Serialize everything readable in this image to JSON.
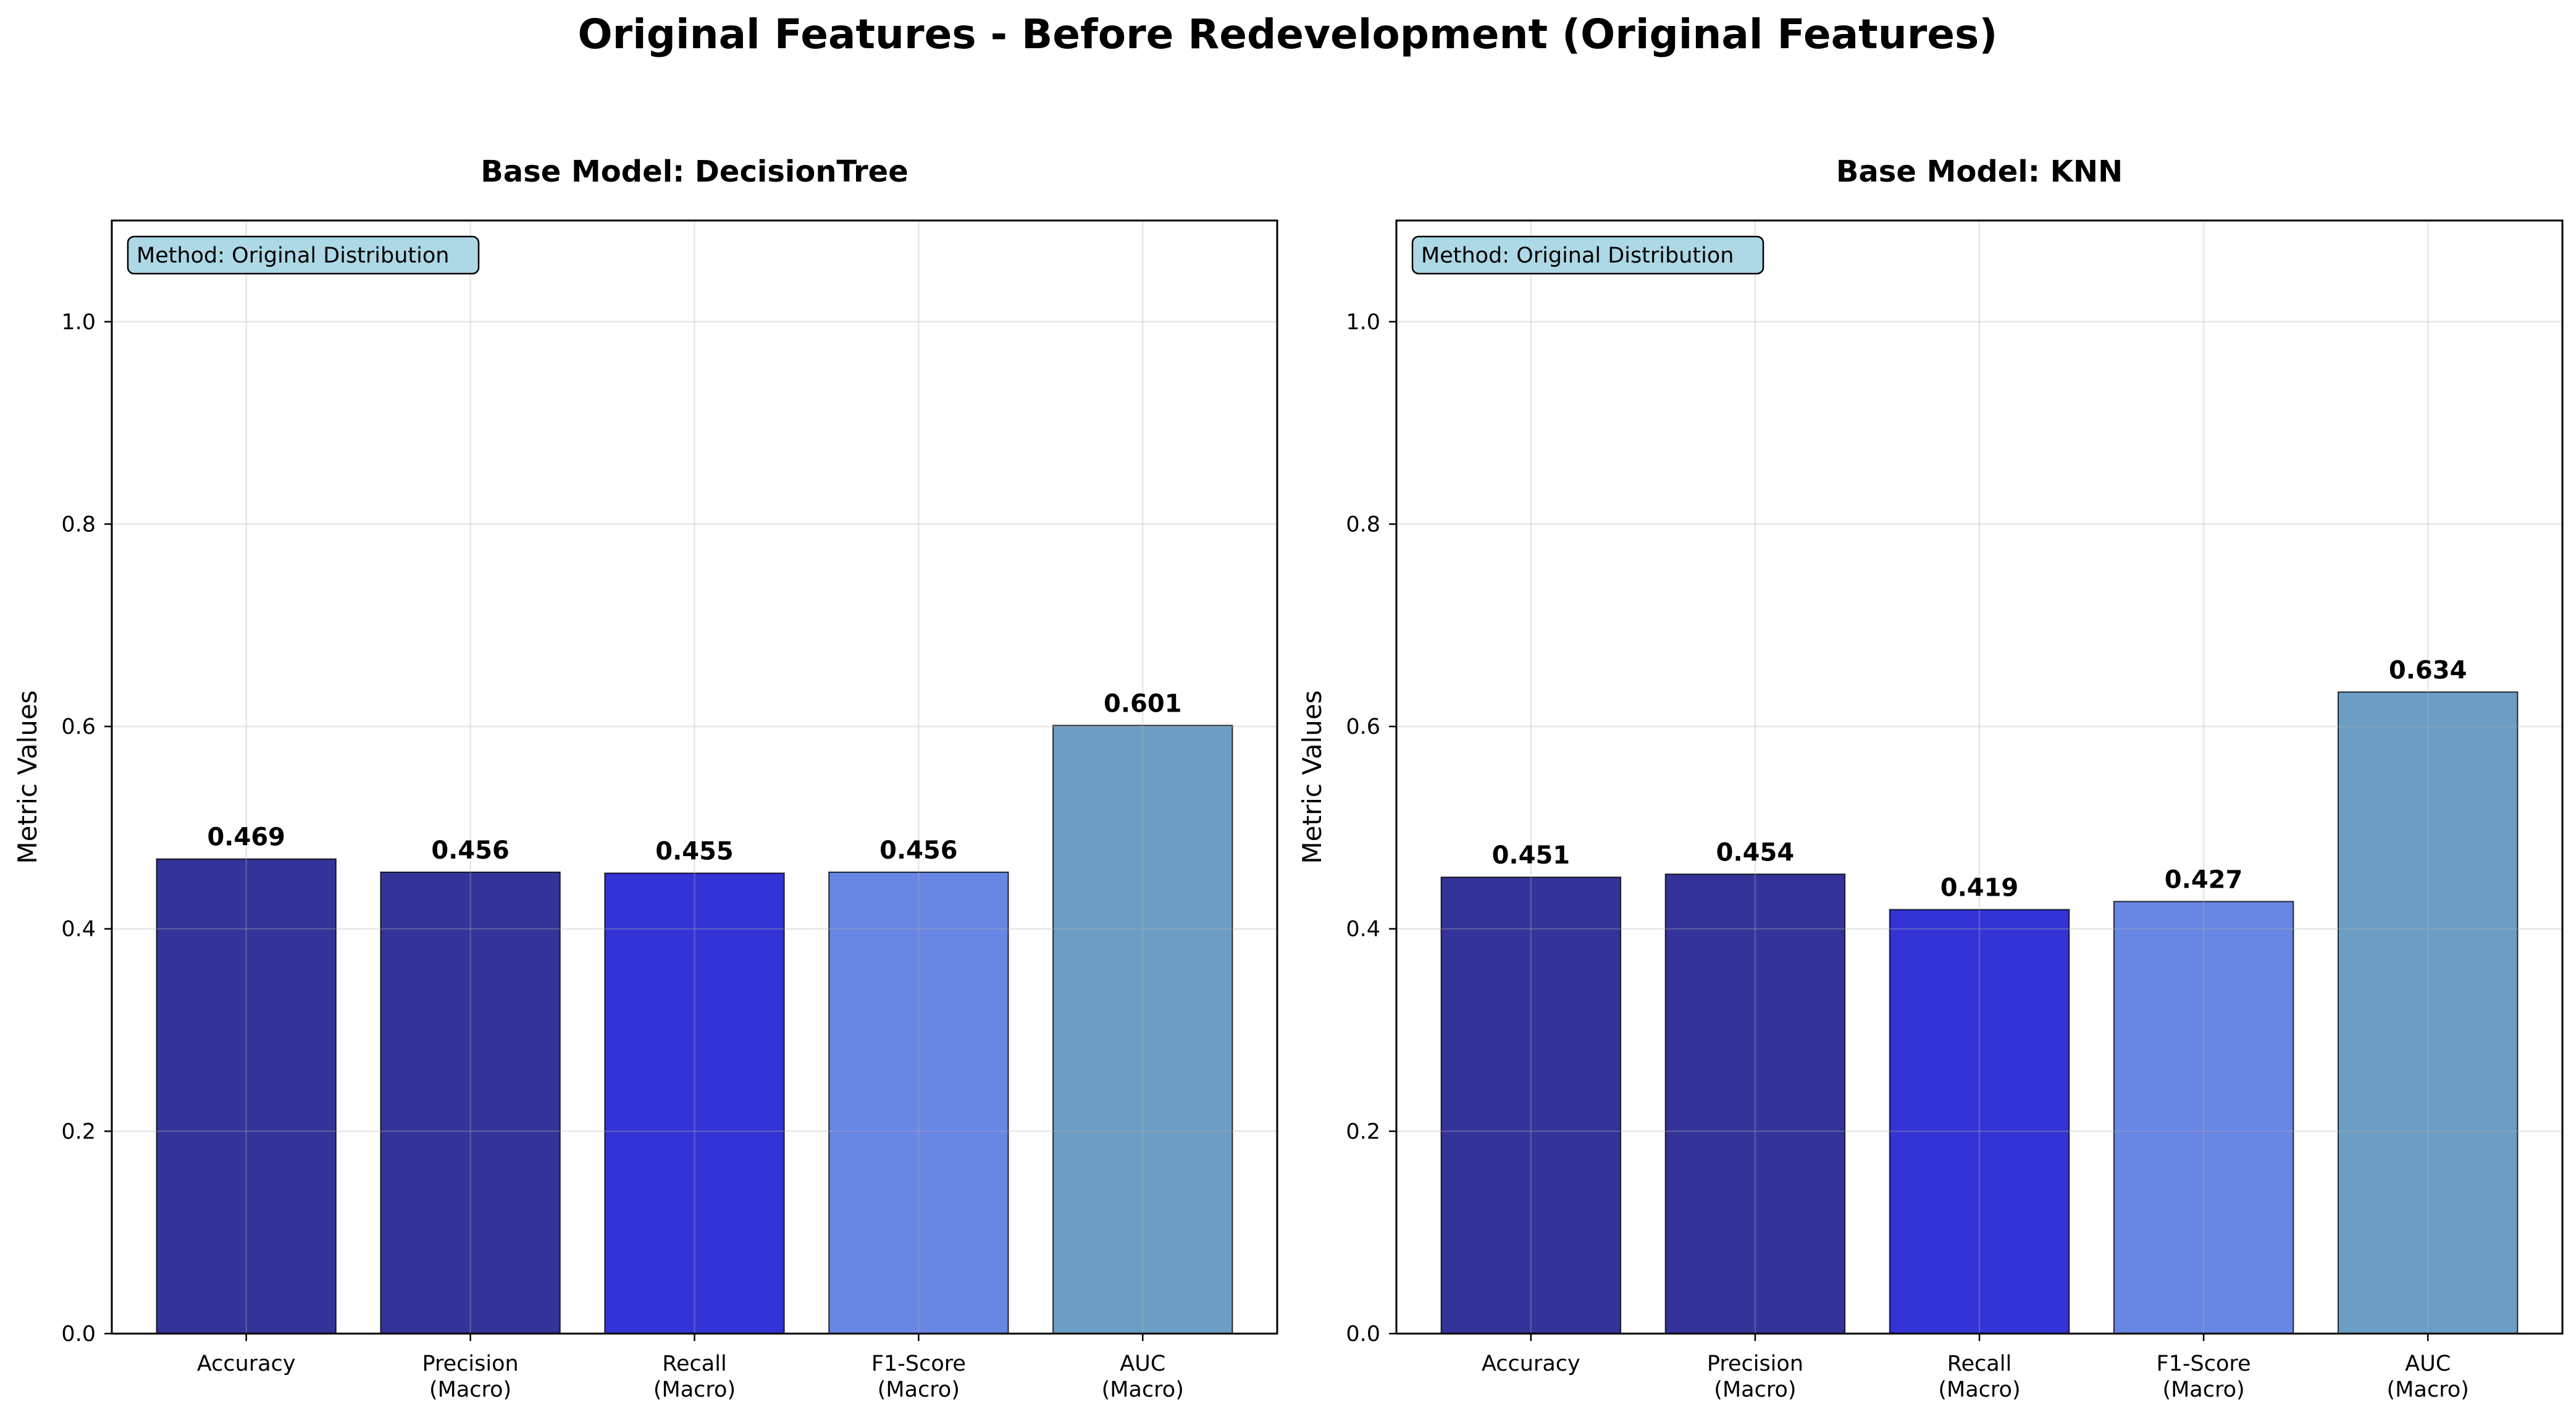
{
  "figure": {
    "title": "Original Features - Before Redevelopment (Original Features)"
  },
  "chart_data": [
    {
      "type": "bar",
      "title": "Base Model: DecisionTree",
      "ylabel": "Metric Values",
      "xlabel": "",
      "ylim": [
        0,
        1.1
      ],
      "yticks": [
        0.0,
        0.2,
        0.4,
        0.6,
        0.8,
        1.0
      ],
      "yticklabels": [
        "0.0",
        "0.2",
        "0.4",
        "0.6",
        "0.8",
        "1.0"
      ],
      "grid": true,
      "annotation": "Method: Original Distribution",
      "categories": [
        [
          "Accuracy"
        ],
        [
          "Precision",
          "(Macro)"
        ],
        [
          "Recall",
          "(Macro)"
        ],
        [
          "F1-Score",
          "(Macro)"
        ],
        [
          "AUC",
          "(Macro)"
        ]
      ],
      "values": [
        0.469,
        0.456,
        0.455,
        0.456,
        0.601
      ],
      "value_labels": [
        "0.469",
        "0.456",
        "0.455",
        "0.456",
        "0.601"
      ],
      "colors": [
        "#333399",
        "#333399",
        "#3333d6",
        "#6886e4",
        "#6c9ec5"
      ]
    },
    {
      "type": "bar",
      "title": "Base Model: KNN",
      "ylabel": "Metric Values",
      "xlabel": "",
      "ylim": [
        0,
        1.1
      ],
      "yticks": [
        0.0,
        0.2,
        0.4,
        0.6,
        0.8,
        1.0
      ],
      "yticklabels": [
        "0.0",
        "0.2",
        "0.4",
        "0.6",
        "0.8",
        "1.0"
      ],
      "grid": true,
      "annotation": "Method: Original Distribution",
      "categories": [
        [
          "Accuracy"
        ],
        [
          "Precision",
          "(Macro)"
        ],
        [
          "Recall",
          "(Macro)"
        ],
        [
          "F1-Score",
          "(Macro)"
        ],
        [
          "AUC",
          "(Macro)"
        ]
      ],
      "values": [
        0.451,
        0.454,
        0.419,
        0.427,
        0.634
      ],
      "value_labels": [
        "0.451",
        "0.454",
        "0.419",
        "0.427",
        "0.634"
      ],
      "colors": [
        "#333399",
        "#333399",
        "#3333d6",
        "#6886e4",
        "#6c9ec5"
      ]
    }
  ]
}
